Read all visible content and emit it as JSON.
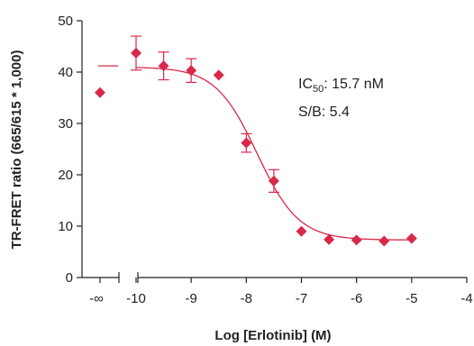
{
  "chart_data": {
    "type": "scatter",
    "xlabel": "Log [Erlotinib] (M)",
    "ylabel": "TR-FRET ratio (665/615 * 1,000)",
    "xlim": [
      -11,
      -4
    ],
    "ylim": [
      0,
      50
    ],
    "grid": false,
    "y_ticks": [
      "0",
      "10",
      "20",
      "30",
      "40",
      "50"
    ],
    "x_ticks": [
      "-∞",
      "-10",
      "-9",
      "-8",
      "-7",
      "-6",
      "-5",
      "-4"
    ],
    "x_tick_values": [
      -10,
      -9,
      -8,
      -7,
      -6,
      -5,
      -4
    ],
    "zero_concentration_point": {
      "x_label": "-∞",
      "y": 36.0
    },
    "top_plateau_y": 41.2,
    "points": [
      {
        "x": -10.0,
        "y": 43.7,
        "err": 3.3
      },
      {
        "x": -9.5,
        "y": 41.2,
        "err": 2.7
      },
      {
        "x": -9.0,
        "y": 40.3,
        "err": 2.3
      },
      {
        "x": -8.5,
        "y": 39.4,
        "err": 0.3
      },
      {
        "x": -8.0,
        "y": 26.2,
        "err": 1.8
      },
      {
        "x": -7.5,
        "y": 18.8,
        "err": 2.2
      },
      {
        "x": -7.0,
        "y": 9.0,
        "err": 0.3
      },
      {
        "x": -6.5,
        "y": 7.4,
        "err": 0.3
      },
      {
        "x": -6.0,
        "y": 7.3,
        "err": 0.2
      },
      {
        "x": -5.5,
        "y": 7.1,
        "err": 0.2
      },
      {
        "x": -5.0,
        "y": 7.6,
        "err": 0.2
      }
    ],
    "fit": {
      "top": 41.0,
      "bottom": 7.3,
      "log_ic50": -7.804,
      "hill": 1.15
    },
    "marker_color": "#d9284a",
    "axis_color": "#222222",
    "annotations": {
      "ic50_prefix": "IC",
      "ic50_subscript": "50",
      "ic50_value": ": 15.7 nM",
      "sb": "S/B: 5.4"
    }
  }
}
